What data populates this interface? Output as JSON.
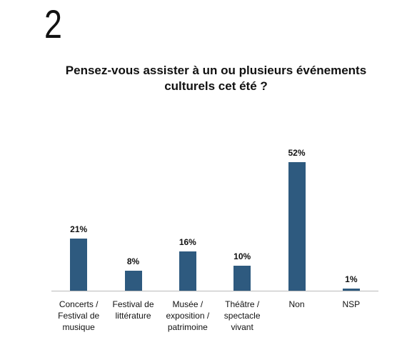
{
  "slide_number": "2",
  "chart_data": {
    "type": "bar",
    "title": "Pensez-vous assister à un ou plusieurs événements culturels cet été ?",
    "categories": [
      "Concerts / Festival de musique",
      "Festival de littérature",
      "Musée / exposition / patrimoine",
      "Théâtre / spectacle vivant",
      "Non",
      "NSP"
    ],
    "values": [
      21,
      8,
      16,
      10,
      52,
      1
    ],
    "value_labels": [
      "21%",
      "8%",
      "16%",
      "10%",
      "52%",
      "1%"
    ],
    "color": "#2e5a7f"
  }
}
